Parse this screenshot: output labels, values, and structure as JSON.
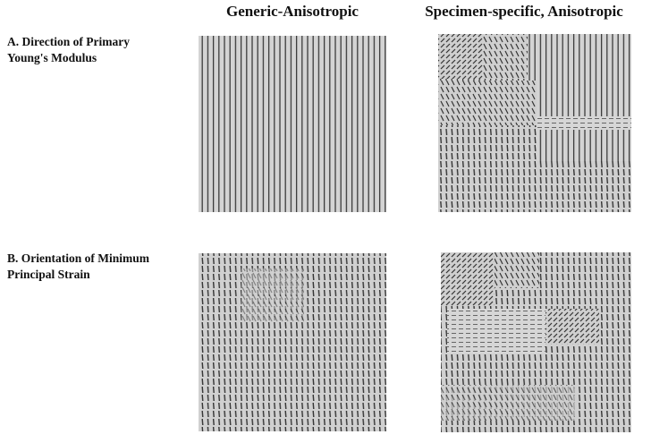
{
  "figure": {
    "columns": [
      "Generic-Anisotropic",
      "Specimen-specific, Anisotropic"
    ],
    "rows": [
      {
        "label_lines": [
          "A. Direction of Primary",
          "Young's Modulus"
        ]
      },
      {
        "label_lines": [
          "B. Orientation of Minimum",
          "Principal Strain"
        ]
      }
    ]
  }
}
